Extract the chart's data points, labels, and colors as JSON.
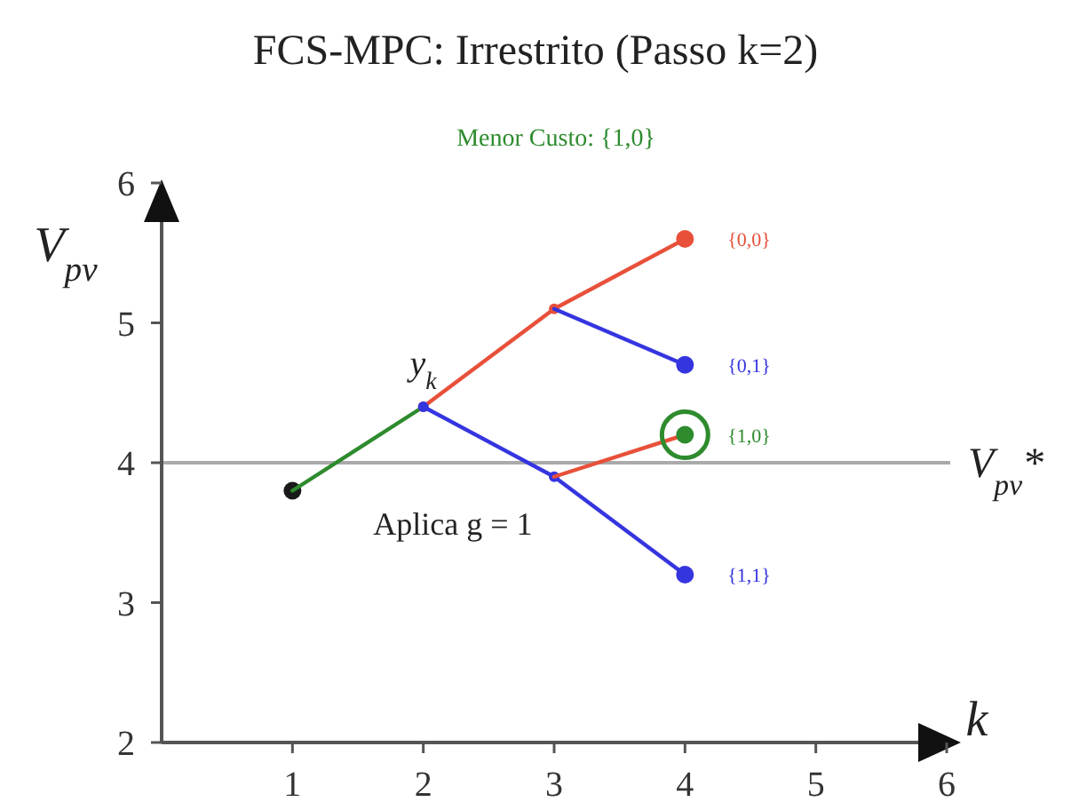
{
  "chart_data": {
    "type": "line",
    "title": "FCS-MPC: Irrestrito (Passo k=2)",
    "subtitle": "Menor Custo: {1,0}",
    "xlabel": "k",
    "ylabel": "V$_{pv}$",
    "xlim": [
      0,
      6
    ],
    "ylim": [
      2,
      6
    ],
    "xticks": [
      1,
      2,
      3,
      4,
      5,
      6
    ],
    "yticks": [
      2,
      3,
      4,
      5,
      6
    ],
    "line_style": "solid",
    "series": [
      {
        "type": "scatter",
        "color": "#1a1a1a",
        "x": [
          1
        ],
        "values": [
          3.8
        ],
        "marker": "circle"
      },
      {
        "color": "#2e8b2e",
        "x": [
          1,
          2
        ],
        "values": [
          3.8,
          4.4
        ]
      },
      {
        "color": "#e8503a",
        "x": [
          2,
          3,
          4
        ],
        "values": [
          4.4,
          5.1,
          5.6
        ],
        "marker": "circle"
      },
      {
        "color": "#3535e0",
        "x": [
          3,
          4
        ],
        "values": [
          5.1,
          4.7
        ]
      },
      {
        "color": "#3535e0",
        "x": [
          2,
          3,
          4
        ],
        "values": [
          4.4,
          3.9,
          3.2
        ],
        "marker": "circle"
      },
      {
        "color": "#e8503a",
        "x": [
          3,
          4
        ],
        "values": [
          3.9,
          4.2
        ]
      },
      {
        "type": "scatter",
        "name": "{0,0}",
        "color": "#e8503a",
        "x": [
          4
        ],
        "values": [
          5.6
        ],
        "marker": "circle"
      },
      {
        "type": "scatter",
        "name": "{0,1}",
        "color": "#3535e0",
        "x": [
          4
        ],
        "values": [
          4.7
        ],
        "marker": "circle"
      },
      {
        "type": "scatter",
        "name": "{1,0}",
        "color": "#2e8b2e",
        "x": [
          4
        ],
        "values": [
          4.2
        ],
        "marker": "circle"
      },
      {
        "type": "scatter",
        "name": "{1,1}",
        "color": "#3535e0",
        "x": [
          4
        ],
        "values": [
          3.2
        ],
        "marker": "circle"
      }
    ],
    "ref_lines": [
      {
        "axis": "y",
        "value": 4,
        "label": "V$_{pv}$*",
        "color": "#aaaaaa"
      }
    ],
    "annotations": [
      {
        "text": "y$_{k}$",
        "x": 2,
        "y": 4.4
      },
      "Aplica g = 1"
    ]
  }
}
